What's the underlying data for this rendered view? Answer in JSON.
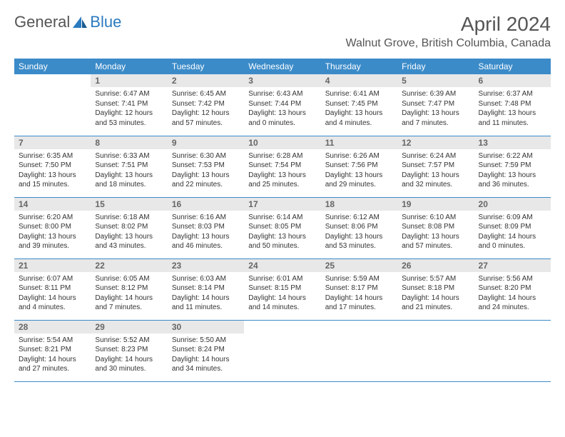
{
  "logo": {
    "text1": "General",
    "text2": "Blue"
  },
  "title": "April 2024",
  "location": "Walnut Grove, British Columbia, Canada",
  "colors": {
    "header_bg": "#3b8bc9",
    "header_text": "#ffffff",
    "daynum_bg": "#e8e8e8",
    "daynum_text": "#666666",
    "border": "#3b8bc9",
    "body_text": "#333333",
    "title_text": "#555555",
    "logo_blue": "#2b7bbf"
  },
  "weekdays": [
    "Sunday",
    "Monday",
    "Tuesday",
    "Wednesday",
    "Thursday",
    "Friday",
    "Saturday"
  ],
  "first_weekday_offset": 1,
  "days": [
    {
      "n": 1,
      "sunrise": "6:47 AM",
      "sunset": "7:41 PM",
      "daylight": "12 hours and 53 minutes."
    },
    {
      "n": 2,
      "sunrise": "6:45 AM",
      "sunset": "7:42 PM",
      "daylight": "12 hours and 57 minutes."
    },
    {
      "n": 3,
      "sunrise": "6:43 AM",
      "sunset": "7:44 PM",
      "daylight": "13 hours and 0 minutes."
    },
    {
      "n": 4,
      "sunrise": "6:41 AM",
      "sunset": "7:45 PM",
      "daylight": "13 hours and 4 minutes."
    },
    {
      "n": 5,
      "sunrise": "6:39 AM",
      "sunset": "7:47 PM",
      "daylight": "13 hours and 7 minutes."
    },
    {
      "n": 6,
      "sunrise": "6:37 AM",
      "sunset": "7:48 PM",
      "daylight": "13 hours and 11 minutes."
    },
    {
      "n": 7,
      "sunrise": "6:35 AM",
      "sunset": "7:50 PM",
      "daylight": "13 hours and 15 minutes."
    },
    {
      "n": 8,
      "sunrise": "6:33 AM",
      "sunset": "7:51 PM",
      "daylight": "13 hours and 18 minutes."
    },
    {
      "n": 9,
      "sunrise": "6:30 AM",
      "sunset": "7:53 PM",
      "daylight": "13 hours and 22 minutes."
    },
    {
      "n": 10,
      "sunrise": "6:28 AM",
      "sunset": "7:54 PM",
      "daylight": "13 hours and 25 minutes."
    },
    {
      "n": 11,
      "sunrise": "6:26 AM",
      "sunset": "7:56 PM",
      "daylight": "13 hours and 29 minutes."
    },
    {
      "n": 12,
      "sunrise": "6:24 AM",
      "sunset": "7:57 PM",
      "daylight": "13 hours and 32 minutes."
    },
    {
      "n": 13,
      "sunrise": "6:22 AM",
      "sunset": "7:59 PM",
      "daylight": "13 hours and 36 minutes."
    },
    {
      "n": 14,
      "sunrise": "6:20 AM",
      "sunset": "8:00 PM",
      "daylight": "13 hours and 39 minutes."
    },
    {
      "n": 15,
      "sunrise": "6:18 AM",
      "sunset": "8:02 PM",
      "daylight": "13 hours and 43 minutes."
    },
    {
      "n": 16,
      "sunrise": "6:16 AM",
      "sunset": "8:03 PM",
      "daylight": "13 hours and 46 minutes."
    },
    {
      "n": 17,
      "sunrise": "6:14 AM",
      "sunset": "8:05 PM",
      "daylight": "13 hours and 50 minutes."
    },
    {
      "n": 18,
      "sunrise": "6:12 AM",
      "sunset": "8:06 PM",
      "daylight": "13 hours and 53 minutes."
    },
    {
      "n": 19,
      "sunrise": "6:10 AM",
      "sunset": "8:08 PM",
      "daylight": "13 hours and 57 minutes."
    },
    {
      "n": 20,
      "sunrise": "6:09 AM",
      "sunset": "8:09 PM",
      "daylight": "14 hours and 0 minutes."
    },
    {
      "n": 21,
      "sunrise": "6:07 AM",
      "sunset": "8:11 PM",
      "daylight": "14 hours and 4 minutes."
    },
    {
      "n": 22,
      "sunrise": "6:05 AM",
      "sunset": "8:12 PM",
      "daylight": "14 hours and 7 minutes."
    },
    {
      "n": 23,
      "sunrise": "6:03 AM",
      "sunset": "8:14 PM",
      "daylight": "14 hours and 11 minutes."
    },
    {
      "n": 24,
      "sunrise": "6:01 AM",
      "sunset": "8:15 PM",
      "daylight": "14 hours and 14 minutes."
    },
    {
      "n": 25,
      "sunrise": "5:59 AM",
      "sunset": "8:17 PM",
      "daylight": "14 hours and 17 minutes."
    },
    {
      "n": 26,
      "sunrise": "5:57 AM",
      "sunset": "8:18 PM",
      "daylight": "14 hours and 21 minutes."
    },
    {
      "n": 27,
      "sunrise": "5:56 AM",
      "sunset": "8:20 PM",
      "daylight": "14 hours and 24 minutes."
    },
    {
      "n": 28,
      "sunrise": "5:54 AM",
      "sunset": "8:21 PM",
      "daylight": "14 hours and 27 minutes."
    },
    {
      "n": 29,
      "sunrise": "5:52 AM",
      "sunset": "8:23 PM",
      "daylight": "14 hours and 30 minutes."
    },
    {
      "n": 30,
      "sunrise": "5:50 AM",
      "sunset": "8:24 PM",
      "daylight": "14 hours and 34 minutes."
    }
  ],
  "labels": {
    "sunrise": "Sunrise:",
    "sunset": "Sunset:",
    "daylight": "Daylight:"
  }
}
